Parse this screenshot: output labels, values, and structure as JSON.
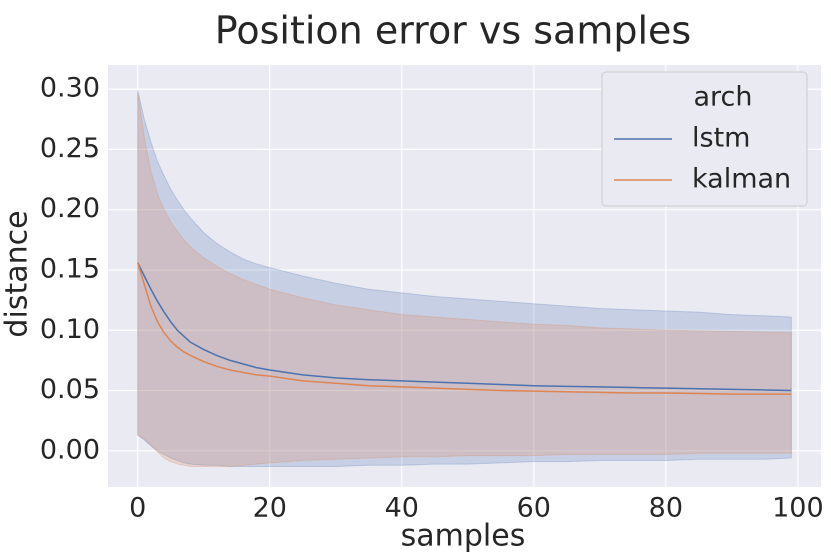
{
  "chart_data": {
    "type": "line",
    "title": "Position error vs samples",
    "xlabel": "samples",
    "ylabel": "distance",
    "xlim": [
      -4.5,
      103.5
    ],
    "ylim": [
      -0.03,
      0.32
    ],
    "grid": true,
    "legend_placement": "top-right",
    "x_ticks": [
      0,
      20,
      40,
      60,
      80,
      100
    ],
    "x_tick_labels": [
      "0",
      "20",
      "40",
      "60",
      "80",
      "100"
    ],
    "y_ticks": [
      0.0,
      0.05,
      0.1,
      0.15,
      0.2,
      0.25,
      0.3
    ],
    "y_tick_labels": [
      "0.00",
      "0.05",
      "0.10",
      "0.15",
      "0.20",
      "0.25",
      "0.30"
    ],
    "legend": {
      "title": "arch",
      "entries": [
        "lstm",
        "kalman"
      ]
    },
    "colors": {
      "background": "#eaeaf2",
      "grid": "#ffffff",
      "lstm": "#4c72b0",
      "kalman": "#dd8452"
    },
    "series": [
      {
        "name": "lstm",
        "x": [
          0,
          1,
          2,
          3,
          4,
          5,
          6,
          7,
          8,
          10,
          12,
          14,
          16,
          18,
          20,
          25,
          30,
          35,
          40,
          45,
          50,
          55,
          60,
          65,
          70,
          75,
          80,
          85,
          90,
          95,
          99
        ],
        "y": [
          0.156,
          0.145,
          0.134,
          0.124,
          0.115,
          0.107,
          0.1,
          0.095,
          0.09,
          0.084,
          0.079,
          0.075,
          0.072,
          0.069,
          0.067,
          0.063,
          0.0605,
          0.059,
          0.058,
          0.057,
          0.056,
          0.055,
          0.054,
          0.0535,
          0.053,
          0.0525,
          0.052,
          0.0515,
          0.051,
          0.0505,
          0.05
        ],
        "band_upper": [
          0.299,
          0.275,
          0.256,
          0.24,
          0.228,
          0.217,
          0.208,
          0.2,
          0.193,
          0.181,
          0.172,
          0.165,
          0.159,
          0.155,
          0.152,
          0.145,
          0.139,
          0.134,
          0.131,
          0.128,
          0.126,
          0.124,
          0.122,
          0.12,
          0.118,
          0.117,
          0.116,
          0.115,
          0.113,
          0.112,
          0.111
        ],
        "band_lower": [
          0.013,
          0.009,
          0.004,
          0.0,
          -0.003,
          -0.006,
          -0.008,
          -0.01,
          -0.011,
          -0.012,
          -0.012,
          -0.013,
          -0.013,
          -0.013,
          -0.013,
          -0.013,
          -0.013,
          -0.012,
          -0.012,
          -0.011,
          -0.011,
          -0.01,
          -0.009,
          -0.009,
          -0.008,
          -0.008,
          -0.008,
          -0.007,
          -0.007,
          -0.007,
          -0.006
        ]
      },
      {
        "name": "kalman",
        "x": [
          0,
          1,
          2,
          3,
          4,
          5,
          6,
          7,
          8,
          10,
          12,
          14,
          16,
          18,
          20,
          25,
          30,
          35,
          40,
          45,
          50,
          55,
          60,
          65,
          70,
          75,
          80,
          85,
          90,
          95,
          99
        ],
        "y": [
          0.156,
          0.138,
          0.12,
          0.107,
          0.098,
          0.091,
          0.086,
          0.082,
          0.079,
          0.074,
          0.07,
          0.067,
          0.065,
          0.063,
          0.062,
          0.058,
          0.056,
          0.054,
          0.053,
          0.052,
          0.051,
          0.05,
          0.0495,
          0.049,
          0.0485,
          0.048,
          0.048,
          0.0475,
          0.047,
          0.047,
          0.047
        ],
        "band_upper": [
          0.298,
          0.26,
          0.232,
          0.213,
          0.2,
          0.19,
          0.182,
          0.175,
          0.169,
          0.16,
          0.153,
          0.147,
          0.142,
          0.138,
          0.134,
          0.127,
          0.121,
          0.117,
          0.113,
          0.111,
          0.109,
          0.107,
          0.105,
          0.104,
          0.102,
          0.101,
          0.1,
          0.0995,
          0.099,
          0.0985,
          0.098
        ],
        "band_lower": [
          0.013,
          0.01,
          0.005,
          -0.001,
          -0.006,
          -0.009,
          -0.011,
          -0.012,
          -0.013,
          -0.013,
          -0.013,
          -0.013,
          -0.012,
          -0.011,
          -0.01,
          -0.008,
          -0.007,
          -0.006,
          -0.005,
          -0.005,
          -0.004,
          -0.004,
          -0.004,
          -0.003,
          -0.003,
          -0.003,
          -0.003,
          -0.002,
          -0.002,
          -0.002,
          -0.002
        ]
      }
    ]
  }
}
